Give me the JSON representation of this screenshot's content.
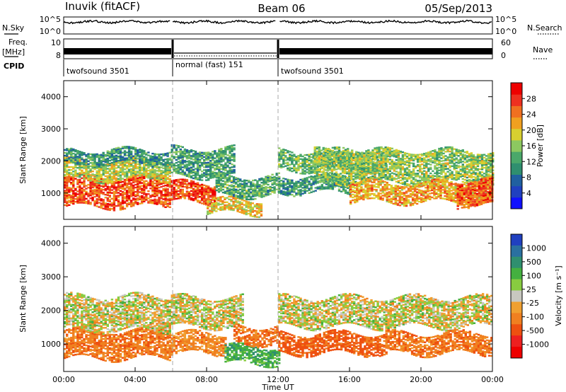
{
  "header": {
    "station": "Inuvik (fitACF)",
    "beam": "Beam 06",
    "date": "05/Sep/2013"
  },
  "left_labels": {
    "nsky": "N.Sky",
    "freq": "Freq.",
    "freq_unit": "[MHz]",
    "cpid": "CPID"
  },
  "right_labels": {
    "nsearch": "N.Search",
    "nave": "Nave"
  },
  "noise_panel": {
    "left_ticks": [
      "10^5",
      "10^0"
    ],
    "right_ticks": [
      "10^5",
      "10^0"
    ]
  },
  "freq_panel": {
    "left_ticks": [
      "10",
      "8"
    ],
    "right_ticks": [
      "60",
      "0"
    ],
    "ylim": [
      7,
      11
    ]
  },
  "cpid_segments": [
    {
      "label": "twofsound 3501",
      "start_hour": 0,
      "end_hour": 6
    },
    {
      "label": "normal (fast) 151",
      "start_hour": 6,
      "end_hour": 12
    },
    {
      "label": "twofsound 3501",
      "start_hour": 12,
      "end_hour": 24
    }
  ],
  "x_axis": {
    "label": "Time UT",
    "ticks": [
      "00:00",
      "04:00",
      "08:00",
      "12:00",
      "16:00",
      "20:00",
      "00:00"
    ],
    "tick_hours": [
      0,
      4,
      8,
      12,
      16,
      20,
      24
    ],
    "xlim": [
      0,
      24
    ]
  },
  "colorbars": {
    "power": {
      "label": "Power [dB]",
      "ticks": [
        "28",
        "24",
        "20",
        "16",
        "12",
        "8",
        "4"
      ],
      "tick_values": [
        28,
        24,
        20,
        16,
        12,
        8,
        4
      ],
      "range": [
        0,
        32
      ],
      "colors": [
        "#1010ff",
        "#2040c0",
        "#2060a0",
        "#2f8f6f",
        "#4aa86a",
        "#8cc860",
        "#d8d030",
        "#f0a020",
        "#f07020",
        "#ee3020",
        "#ee0000"
      ]
    },
    "velocity": {
      "label": "Velocity [m s⁻¹]",
      "ticks": [
        "1000",
        "500",
        "100",
        "25",
        "-25",
        "-100",
        "-500",
        "-1000"
      ],
      "colors": [
        "#2040c0",
        "#2a70a0",
        "#2f8f6f",
        "#44b040",
        "#88cc40",
        "#c8c8c0",
        "#f0a030",
        "#f08020",
        "#ee5010",
        "#ee2020",
        "#ee0000"
      ]
    }
  },
  "chart_data": [
    {
      "type": "heatmap",
      "panel": "power",
      "ylabel": "Slant Range [km]",
      "xlabel": "",
      "ylim": [
        180,
        4500
      ],
      "yticks": [
        1000,
        2000,
        3000,
        4000
      ],
      "xlim": [
        0,
        24
      ],
      "grid": false,
      "regions": [
        {
          "x": [
            0.0,
            6.0
          ],
          "y": [
            560,
            1500
          ],
          "value": 26
        },
        {
          "x": [
            0.0,
            6.0
          ],
          "y": [
            1400,
            2000
          ],
          "value": 18
        },
        {
          "x": [
            0.0,
            6.0
          ],
          "y": [
            1900,
            2350
          ],
          "value": 11
        },
        {
          "x": [
            6.0,
            8.5
          ],
          "y": [
            700,
            1300
          ],
          "value": 27
        },
        {
          "x": [
            6.0,
            9.5
          ],
          "y": [
            1500,
            2400
          ],
          "value": 12
        },
        {
          "x": [
            8.0,
            11.0
          ],
          "y": [
            350,
            800
          ],
          "value": 20
        },
        {
          "x": [
            8.5,
            12.0
          ],
          "y": [
            900,
            1500
          ],
          "value": 13
        },
        {
          "x": [
            12.0,
            18.0
          ],
          "y": [
            1700,
            2300
          ],
          "value": 14
        },
        {
          "x": [
            12.0,
            16.0
          ],
          "y": [
            1000,
            1500
          ],
          "value": 12
        },
        {
          "x": [
            14.0,
            24.0
          ],
          "y": [
            1300,
            2300
          ],
          "value": 16
        },
        {
          "x": [
            16.0,
            24.0
          ],
          "y": [
            700,
            1300
          ],
          "value": 22
        },
        {
          "x": [
            22.0,
            24.0
          ],
          "y": [
            600,
            1400
          ],
          "value": 26
        }
      ]
    },
    {
      "type": "heatmap",
      "panel": "velocity",
      "ylabel": "Slant Range [km]",
      "xlabel": "Time UT",
      "ylim": [
        180,
        4500
      ],
      "yticks": [
        1000,
        2000,
        3000,
        4000
      ],
      "xlim": [
        0,
        24
      ],
      "grid": false,
      "regions": [
        {
          "x": [
            0.0,
            6.0
          ],
          "y": [
            560,
            1400
          ],
          "value": -200
        },
        {
          "x": [
            0.0,
            6.0
          ],
          "y": [
            1400,
            2400
          ],
          "value": 0
        },
        {
          "x": [
            6.0,
            9.0
          ],
          "y": [
            700,
            1300
          ],
          "value": -150
        },
        {
          "x": [
            6.0,
            10.0
          ],
          "y": [
            1500,
            2400
          ],
          "value": 0
        },
        {
          "x": [
            9.0,
            12.0
          ],
          "y": [
            400,
            900
          ],
          "value": 200
        },
        {
          "x": [
            9.5,
            12.0
          ],
          "y": [
            1000,
            1500
          ],
          "value": -200
        },
        {
          "x": [
            12.0,
            24.0
          ],
          "y": [
            1500,
            2400
          ],
          "value": 0
        },
        {
          "x": [
            12.0,
            18.0
          ],
          "y": [
            700,
            1300
          ],
          "value": -300
        },
        {
          "x": [
            18.0,
            24.0
          ],
          "y": [
            700,
            1300
          ],
          "value": -200
        }
      ]
    }
  ]
}
